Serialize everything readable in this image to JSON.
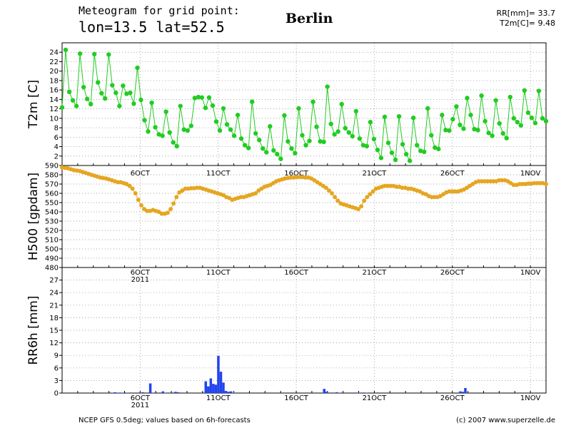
{
  "header": {
    "title_line1": "Meteogram for grid point:",
    "title_line2": "lon=13.5  lat=52.5",
    "city": "Berlin",
    "summary_rr": "RR[mm]= 33.7",
    "summary_t2m": "T2m[C]= 9.48"
  },
  "footer": {
    "source": "NCEP GFS 0.5deg; values based on 6h-forecasts",
    "copyright": "(c) 2007 www.superzelle.de"
  },
  "chart_data": [
    {
      "type": "line",
      "ylabel": "T2m [C]",
      "ylim": [
        0,
        26
      ],
      "yticks": [
        0,
        2,
        4,
        6,
        8,
        10,
        12,
        14,
        16,
        18,
        20,
        22,
        24
      ],
      "ytick_labels": [
        "",
        "2",
        "4",
        "6",
        "8",
        "10",
        "12",
        "14",
        "16",
        "18",
        "20",
        "22",
        "24"
      ],
      "xlim": [
        1,
        32
      ],
      "xticks": [
        6,
        11,
        16,
        21,
        26,
        31
      ],
      "xtick_labels": [
        "6OCT",
        "11OCT",
        "16OCT",
        "21OCT",
        "26OCT",
        "1NOV"
      ],
      "grid": true,
      "color": "#22cc22",
      "series": [
        {
          "values": [
            12.3,
            24.5,
            15.6,
            13.8,
            12.6,
            23.7,
            16.6,
            14.1,
            13.0,
            23.6,
            17.6,
            15.3,
            14.2,
            23.5,
            17.0,
            15.4,
            12.6,
            16.9,
            15.2,
            15.4,
            13.1,
            20.7,
            13.9,
            9.6,
            7.2,
            13.3,
            8.1,
            6.6,
            6.3,
            11.4,
            7.0,
            4.9,
            4.1,
            12.6,
            7.6,
            7.4,
            8.4,
            14.3,
            14.5,
            14.4,
            12.2,
            14.4,
            12.7,
            9.3,
            7.4,
            12.1,
            8.7,
            7.6,
            6.3,
            10.7,
            5.7,
            4.3,
            3.7,
            13.5,
            6.8,
            5.4,
            3.6,
            2.8,
            8.3,
            3.2,
            2.4,
            1.4,
            10.6,
            5.1,
            3.6,
            2.6,
            12.1,
            6.4,
            4.3,
            5.2,
            13.5,
            8.2,
            5.1,
            5.0,
            16.7,
            8.8,
            6.6,
            7.2,
            13.0,
            7.9,
            7.0,
            6.2,
            11.5,
            5.7,
            4.3,
            4.1,
            9.2,
            5.6,
            3.3,
            1.6,
            10.3,
            4.8,
            2.7,
            1.2,
            10.4,
            4.5,
            2.4,
            1.0,
            10.1,
            4.3,
            3.1,
            2.9,
            12.1,
            6.4,
            3.8,
            3.5,
            10.7,
            7.5,
            7.4,
            9.8,
            12.5,
            8.6,
            7.8,
            14.3,
            10.7,
            7.7,
            7.5,
            14.8,
            9.4,
            6.9,
            6.3,
            13.8,
            8.9,
            6.8,
            5.8,
            14.5,
            10.0,
            9.2,
            8.5,
            15.9,
            11.2,
            10.1,
            9.0,
            15.8,
            10.0,
            9.4
          ]
        }
      ]
    },
    {
      "type": "line",
      "ylabel": "H500 [gpdam]",
      "ylim": [
        480,
        590
      ],
      "yticks": [
        480,
        490,
        500,
        510,
        520,
        530,
        540,
        550,
        560,
        570,
        580,
        590
      ],
      "ytick_labels": [
        "480",
        "490",
        "500",
        "510",
        "520",
        "530",
        "540",
        "550",
        "560",
        "570",
        "580",
        "590"
      ],
      "xlim": [
        1,
        32
      ],
      "xticks": [
        6,
        11,
        16,
        21,
        26,
        31
      ],
      "xtick_labels": [
        "6OCT",
        "11OCT",
        "16OCT",
        "21OCT",
        "26OCT",
        "1NOV"
      ],
      "year_label": "2011",
      "grid": true,
      "color": "#e6a623",
      "series": [
        {
          "values": [
            588,
            587.5,
            587,
            586,
            585,
            584.5,
            584,
            583,
            582,
            581,
            580,
            579,
            578,
            577,
            576.5,
            576,
            575,
            574,
            573,
            572,
            572,
            571,
            570,
            568,
            565,
            560,
            553,
            547,
            543,
            541,
            541,
            542,
            541,
            540,
            538,
            538,
            539,
            543,
            549,
            556,
            561,
            563,
            565,
            565,
            565.5,
            565.5,
            566,
            566,
            565,
            564,
            563,
            562,
            561,
            560,
            559,
            558,
            556,
            555,
            553,
            554,
            555,
            556,
            556,
            557,
            558,
            559,
            560,
            563,
            565,
            567,
            568,
            569,
            571,
            573,
            574,
            575,
            576,
            576.5,
            577,
            577,
            577.5,
            577.5,
            577.5,
            577,
            577,
            576,
            574,
            572,
            570,
            568,
            566,
            563,
            560,
            556,
            552,
            549,
            548,
            547,
            546,
            545,
            544,
            543,
            546,
            552,
            556,
            559,
            562,
            565,
            566,
            567,
            568,
            568,
            568,
            568,
            567,
            567,
            566,
            566,
            565,
            565,
            564,
            563,
            562,
            560,
            559,
            557,
            556,
            556,
            556,
            557,
            559,
            561,
            562,
            562,
            562,
            562,
            563,
            564,
            566,
            568,
            570,
            572,
            573,
            573,
            573,
            573,
            573,
            573,
            573,
            574,
            574,
            574,
            573,
            571,
            569,
            569,
            570,
            570,
            570,
            570.5,
            570.5,
            571,
            571,
            571,
            571,
            570
          ]
        }
      ]
    },
    {
      "type": "bar",
      "ylabel": "RR6h [mm]",
      "ylim": [
        0,
        30
      ],
      "yticks": [
        0,
        3,
        6,
        9,
        12,
        15,
        18,
        21,
        24,
        27,
        30
      ],
      "ytick_labels": [
        "0",
        "3",
        "6",
        "9",
        "12",
        "15",
        "18",
        "21",
        "24",
        "27",
        ""
      ],
      "xlim": [
        1,
        32
      ],
      "xticks": [
        6,
        11,
        16,
        21,
        26,
        31
      ],
      "xtick_labels": [
        "6OCT",
        "11OCT",
        "16OCT",
        "21OCT",
        "26OCT",
        "1NOV"
      ],
      "year_label": "2011",
      "grid": true,
      "color": "#2244ee",
      "series": [
        {
          "values": [
            0,
            0,
            0,
            0,
            0,
            0,
            0,
            0,
            0,
            0,
            0,
            0,
            0,
            0,
            0,
            0,
            0,
            0,
            0,
            0,
            0.1,
            0.2,
            0.1,
            0,
            0.1,
            0,
            0.1,
            0,
            0,
            0,
            0,
            0,
            0.2,
            0,
            0,
            2.3,
            0.1,
            0,
            0,
            0,
            0.4,
            0.1,
            0,
            0,
            0,
            0.3,
            0.2,
            0,
            0,
            0,
            0,
            0,
            0,
            0,
            0,
            0,
            0,
            2.8,
            1.6,
            3.5,
            2.2,
            2.0,
            8.9,
            5.1,
            2.5,
            0.5,
            0.3,
            0.4,
            0.1,
            0,
            0,
            0,
            0,
            0,
            0,
            0,
            0,
            0,
            0,
            0,
            0,
            0,
            0,
            0,
            0,
            0,
            0,
            0,
            0,
            0,
            0,
            0,
            0,
            0,
            0,
            0,
            0,
            0,
            0,
            0,
            0,
            0,
            0,
            0,
            1.0,
            0.3,
            0,
            0,
            0,
            0.2,
            0.1,
            0,
            0,
            0,
            0,
            0,
            0,
            0,
            0.1,
            0,
            0,
            0.1,
            0,
            0,
            0,
            0,
            0,
            0,
            0,
            0,
            0,
            0,
            0,
            0,
            0,
            0,
            0,
            0,
            0,
            0,
            0,
            0,
            0,
            0,
            0,
            0,
            0,
            0,
            0,
            0,
            0,
            0,
            0,
            0,
            0,
            0,
            0,
            0,
            0.4,
            0.3,
            1.2,
            0,
            0,
            0,
            0,
            0,
            0,
            0,
            0,
            0,
            0,
            0,
            0,
            0,
            0,
            0,
            0,
            0,
            0,
            0,
            0,
            0,
            0,
            0,
            0,
            0,
            0,
            0,
            0,
            0,
            0,
            0,
            0
          ]
        }
      ]
    }
  ]
}
